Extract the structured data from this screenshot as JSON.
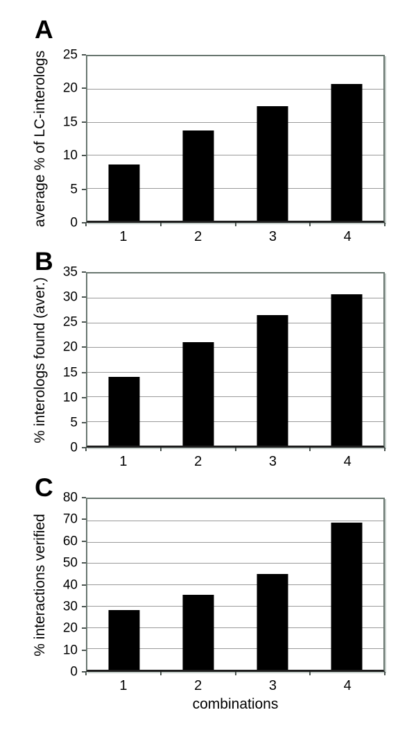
{
  "figure": {
    "background_color": "#ffffff",
    "bar_color": "#000000",
    "frame_color": "#68766f",
    "gridline_color": "#999999",
    "text_color": "#000000"
  },
  "chart_data": [
    {
      "type": "bar",
      "panel": "A",
      "title": "",
      "xlabel": "",
      "ylabel": "average % of LC-interologs",
      "categories": [
        "1",
        "2",
        "3",
        "4"
      ],
      "values": [
        8.5,
        13.7,
        17.4,
        20.8
      ],
      "ylim": [
        0,
        25
      ],
      "ytick_step": 5,
      "yticks": [
        0,
        5,
        10,
        15,
        20,
        25
      ],
      "grid": true,
      "legend": "none"
    },
    {
      "type": "bar",
      "panel": "B",
      "title": "",
      "xlabel": "",
      "ylabel": "% interologs found (aver.)",
      "categories": [
        "1",
        "2",
        "3",
        "4"
      ],
      "values": [
        14,
        21,
        26.5,
        30.7
      ],
      "ylim": [
        0,
        35
      ],
      "ytick_step": 5,
      "yticks": [
        0,
        5,
        10,
        15,
        20,
        25,
        30,
        35
      ],
      "grid": true,
      "legend": "none"
    },
    {
      "type": "bar",
      "panel": "C",
      "title": "",
      "xlabel": "combinations",
      "ylabel": "% interactions verified",
      "categories": [
        "1",
        "2",
        "3",
        "4"
      ],
      "values": [
        28,
        35,
        45,
        69
      ],
      "ylim": [
        0,
        80
      ],
      "ytick_step": 10,
      "yticks": [
        0,
        10,
        20,
        30,
        40,
        50,
        60,
        70,
        80
      ],
      "grid": true,
      "legend": "none"
    }
  ]
}
